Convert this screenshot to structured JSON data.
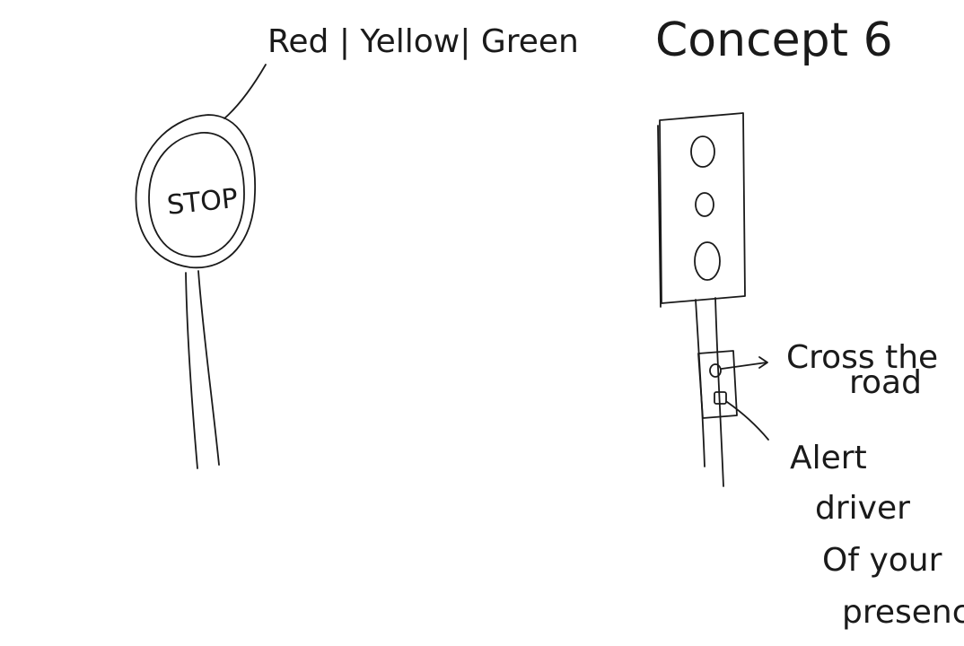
{
  "title": "Concept 6",
  "stop_sign": {
    "face_text": "STOP",
    "callout": "Red | Yellow| Green"
  },
  "traffic_light": {
    "labels": {
      "cross": [
        "Cross the",
        "road"
      ],
      "alert": [
        "Alert",
        "driver",
        "Of your",
        "presence"
      ]
    }
  }
}
